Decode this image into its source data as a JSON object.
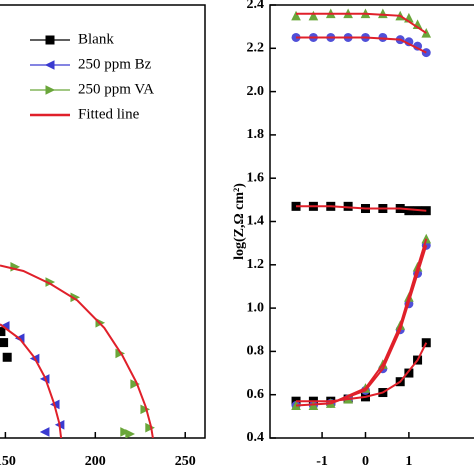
{
  "chart_data": [
    {
      "type": "scatter",
      "xlim": [
        147,
        261
      ],
      "ylim": [
        0,
        236
      ],
      "xticks": [
        150,
        200,
        250
      ],
      "series": [
        {
          "name": "Blank",
          "color": "#000000",
          "marker": "square",
          "x": [
            147.5,
            149,
            151
          ],
          "y": [
            58,
            52,
            44
          ]
        },
        {
          "name": "250 ppm Bz",
          "color": "#3a3ad0",
          "marker": "triangle-left",
          "x": [
            149.8,
            158.1,
            166.4,
            172,
            177.6,
            180.3,
            172
          ],
          "y": [
            61.1,
            54.4,
            43.3,
            32.2,
            18.3,
            7.2,
            3.3
          ]
        },
        {
          "name": "250 ppm VA",
          "color": "#6aa63a",
          "marker": "triangle-right",
          "x": [
            155.3,
            174.8,
            188.7,
            202.6,
            213.7,
            222,
            227.6,
            230.3,
            216.4,
            219.2
          ],
          "y": [
            93.3,
            85,
            76.7,
            62.8,
            46.1,
            29.4,
            15.6,
            5.6,
            3.3,
            2.2
          ]
        },
        {
          "name": "Fitted line",
          "color": "#e0202a",
          "marker": "line",
          "x": [
            147,
            160,
            175,
            190,
            205,
            215,
            223,
            228,
            231,
            232,
            null,
            147,
            158,
            166,
            172,
            177,
            180,
            181
          ],
          "y": [
            94,
            91,
            84,
            75,
            60,
            45,
            30,
            17,
            6,
            0,
            null,
            62,
            54,
            44,
            33,
            19,
            8,
            0
          ]
        }
      ]
    },
    {
      "type": "scatter",
      "xlim": [
        -2.2,
        2.5
      ],
      "ylim": [
        0.4,
        2.4
      ],
      "xticks": [
        -1,
        0,
        1
      ],
      "yticks": [
        0.4,
        0.6,
        0.8,
        1.0,
        1.2,
        1.4,
        1.6,
        1.8,
        2.0,
        2.2,
        2.4
      ],
      "ytick_labels": [
        "0.4",
        "0.6",
        "0.8",
        "1.0",
        "1.2",
        "1.4",
        "1.6",
        "1.8",
        "2.0",
        "2.2",
        "2.4"
      ],
      "ylabel": "log(Z,Ω cm²)",
      "series": [
        {
          "color": "#000000",
          "marker": "square",
          "x": [
            -1.6,
            -1.2,
            -0.8,
            -0.4,
            0,
            0.4,
            0.8,
            1.0,
            1.2,
            1.4,
            null,
            -1.6,
            -1.2,
            -0.8,
            -0.4,
            0,
            0.4,
            0.8,
            1.0,
            1.2,
            1.4
          ],
          "y": [
            1.47,
            1.47,
            1.47,
            1.47,
            1.46,
            1.46,
            1.46,
            1.45,
            1.45,
            1.45,
            null,
            0.57,
            0.57,
            0.57,
            0.58,
            0.59,
            0.61,
            0.66,
            0.7,
            0.76,
            0.84
          ]
        },
        {
          "color": "#5050d8",
          "marker": "circle",
          "x": [
            -1.6,
            -1.2,
            -0.8,
            -0.4,
            0,
            0.4,
            0.8,
            1.0,
            1.2,
            1.4,
            null,
            -1.6,
            -1.2,
            -0.8,
            -0.4,
            0,
            0.4,
            0.8,
            1.0,
            1.2,
            1.4
          ],
          "y": [
            2.25,
            2.25,
            2.25,
            2.25,
            2.25,
            2.25,
            2.24,
            2.23,
            2.21,
            2.18,
            null,
            0.55,
            0.55,
            0.56,
            0.58,
            0.62,
            0.72,
            0.9,
            1.02,
            1.16,
            1.29
          ]
        },
        {
          "color": "#6aa63a",
          "marker": "triangle-up",
          "x": [
            -1.6,
            -1.2,
            -0.8,
            -0.4,
            0,
            0.4,
            0.8,
            1.0,
            1.2,
            1.4,
            null,
            -1.6,
            -1.2,
            -0.8,
            -0.4,
            0,
            0.4,
            0.8,
            1.0,
            1.2,
            1.4
          ],
          "y": [
            2.35,
            2.35,
            2.36,
            2.36,
            2.36,
            2.36,
            2.35,
            2.34,
            2.31,
            2.27,
            null,
            0.55,
            0.55,
            0.56,
            0.58,
            0.63,
            0.74,
            0.92,
            1.05,
            1.19,
            1.32
          ]
        },
        {
          "color": "#e0202a",
          "marker": "line",
          "x": [
            -1.6,
            -0.8,
            0,
            0.8,
            1.4,
            null,
            -1.6,
            -0.8,
            0,
            0.8,
            1.4,
            null,
            -1.6,
            -0.8,
            0,
            0.8,
            1.4,
            null,
            -1.6,
            -0.8,
            0,
            0.4,
            0.8,
            1.2,
            1.4,
            null,
            -1.6,
            -0.8,
            0,
            0.4,
            0.8,
            1.2,
            1.4,
            null,
            -1.6,
            -0.8,
            0,
            0.4,
            0.8,
            1.2,
            1.4
          ],
          "y": [
            1.47,
            1.47,
            1.46,
            1.46,
            1.45,
            null,
            2.25,
            2.25,
            2.25,
            2.24,
            2.18,
            null,
            2.36,
            2.36,
            2.36,
            2.35,
            2.27,
            null,
            0.57,
            0.57,
            0.59,
            0.61,
            0.66,
            0.76,
            0.84,
            null,
            0.55,
            0.56,
            0.62,
            0.72,
            0.9,
            1.16,
            1.29,
            null,
            0.55,
            0.56,
            0.63,
            0.74,
            0.92,
            1.19,
            1.32
          ]
        }
      ]
    }
  ]
}
